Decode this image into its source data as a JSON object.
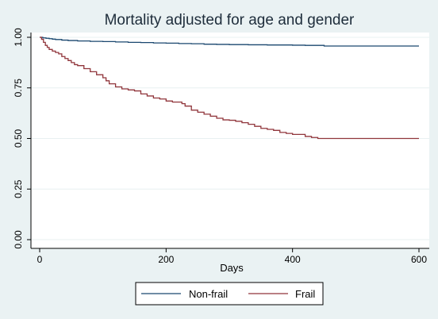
{
  "chart_data": {
    "type": "line",
    "title": "Mortality adjusted for age and gender",
    "xlabel": "Days",
    "ylabel": "",
    "xlim": [
      0,
      600
    ],
    "ylim": [
      0,
      1
    ],
    "x_ticks": [
      "0",
      "200",
      "400",
      "600"
    ],
    "y_ticks": [
      "0.00",
      "0.25",
      "0.50",
      "0.75",
      "1.00"
    ],
    "grid": true,
    "legend_position": "bottom",
    "step": true,
    "series": [
      {
        "name": "Non-frail",
        "color": "#1a476f",
        "x": [
          0,
          5,
          10,
          15,
          20,
          25,
          35,
          45,
          60,
          80,
          100,
          120,
          140,
          160,
          180,
          200,
          220,
          240,
          260,
          280,
          300,
          330,
          360,
          400,
          420,
          450,
          480,
          520,
          560,
          600
        ],
        "y": [
          1.0,
          0.997,
          0.995,
          0.993,
          0.991,
          0.989,
          0.986,
          0.984,
          0.982,
          0.98,
          0.979,
          0.977,
          0.975,
          0.974,
          0.972,
          0.971,
          0.969,
          0.968,
          0.966,
          0.965,
          0.964,
          0.963,
          0.962,
          0.961,
          0.96,
          0.957,
          0.957,
          0.957,
          0.957,
          0.957
        ]
      },
      {
        "name": "Frail",
        "color": "#90353b",
        "x": [
          0,
          3,
          6,
          9,
          12,
          15,
          20,
          25,
          30,
          35,
          40,
          45,
          50,
          55,
          60,
          70,
          80,
          90,
          100,
          105,
          110,
          120,
          130,
          140,
          150,
          160,
          170,
          180,
          190,
          200,
          210,
          220,
          225,
          230,
          240,
          250,
          260,
          270,
          280,
          290,
          300,
          310,
          320,
          330,
          340,
          350,
          360,
          370,
          380,
          390,
          400,
          420,
          430,
          440,
          460,
          500,
          550,
          600
        ],
        "y": [
          1.0,
          0.99,
          0.975,
          0.96,
          0.95,
          0.94,
          0.932,
          0.925,
          0.918,
          0.905,
          0.895,
          0.885,
          0.875,
          0.865,
          0.86,
          0.845,
          0.83,
          0.815,
          0.8,
          0.785,
          0.77,
          0.755,
          0.745,
          0.74,
          0.735,
          0.72,
          0.71,
          0.7,
          0.695,
          0.685,
          0.68,
          0.68,
          0.672,
          0.66,
          0.64,
          0.63,
          0.62,
          0.61,
          0.6,
          0.592,
          0.59,
          0.585,
          0.578,
          0.57,
          0.56,
          0.55,
          0.545,
          0.54,
          0.53,
          0.525,
          0.52,
          0.51,
          0.505,
          0.5,
          0.5,
          0.5,
          0.5,
          0.5
        ]
      }
    ]
  }
}
